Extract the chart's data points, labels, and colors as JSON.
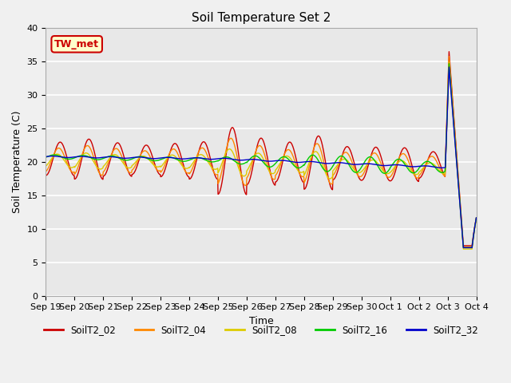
{
  "title": "Soil Temperature Set 2",
  "xlabel": "Time",
  "ylabel": "Soil Temperature (C)",
  "ylim": [
    0,
    40
  ],
  "series_names": [
    "SoilT2_02",
    "SoilT2_04",
    "SoilT2_08",
    "SoilT2_16",
    "SoilT2_32"
  ],
  "series_colors": [
    "#cc0000",
    "#ff8800",
    "#ddcc00",
    "#00cc00",
    "#0000cc"
  ],
  "annotation_text": "TW_met",
  "annotation_bg": "#ffffcc",
  "annotation_border": "#cc0000",
  "bg_color": "#e8e8e8",
  "grid_color": "#ffffff",
  "tick_labels": [
    "Sep 19",
    "Sep 20",
    "Sep 21",
    "Sep 22",
    "Sep 23",
    "Sep 24",
    "Sep 25",
    "Sep 26",
    "Sep 27",
    "Sep 28",
    "Sep 29",
    "Sep 30",
    "Oct 1",
    "Oct 2",
    "Oct 3",
    "Oct 4"
  ]
}
